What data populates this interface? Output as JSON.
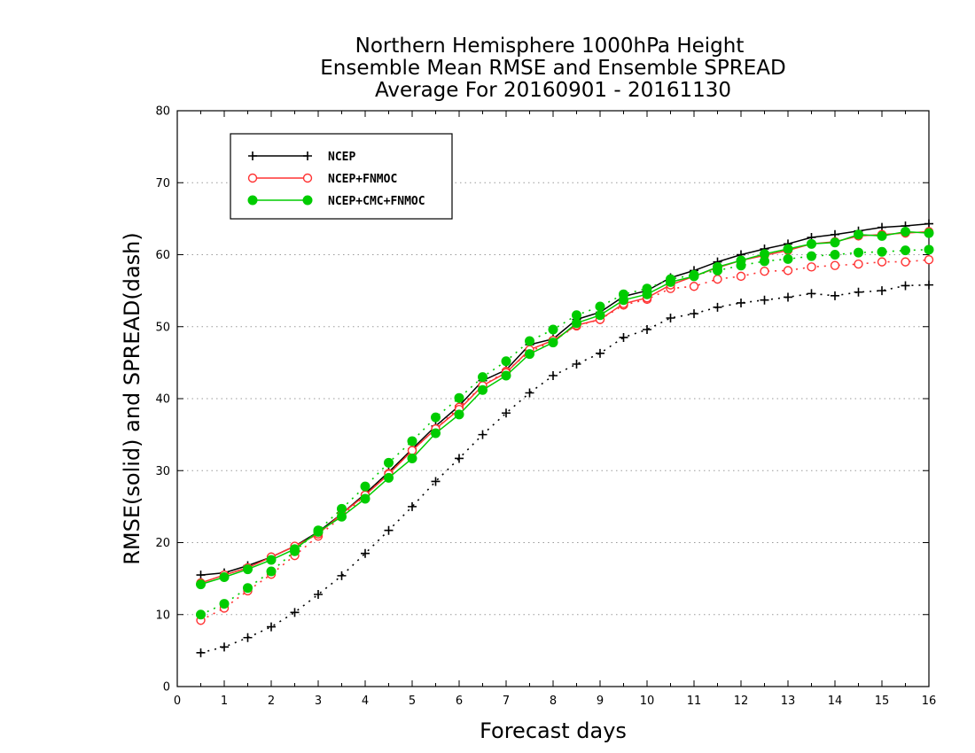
{
  "chart_data": {
    "type": "line",
    "title_lines": [
      "Northern Hemisphere 1000hPa Height",
      "Ensemble Mean RMSE and Ensemble SPREAD",
      "Average For 20160901 - 20161130"
    ],
    "xlabel": "Forecast days",
    "ylabel": "RMSE(solid) and SPREAD(dash)",
    "xlim": [
      0,
      16
    ],
    "ylim": [
      0,
      80
    ],
    "xticks": [
      0,
      1,
      2,
      3,
      4,
      5,
      6,
      7,
      8,
      9,
      10,
      11,
      12,
      13,
      14,
      15,
      16
    ],
    "yticks": [
      0,
      10,
      20,
      30,
      40,
      50,
      60,
      70,
      80
    ],
    "grid": true,
    "legend_position": "top-left",
    "x": [
      0.5,
      1,
      1.5,
      2,
      2.5,
      3,
      3.5,
      4,
      4.5,
      5,
      5.5,
      6,
      6.5,
      7,
      7.5,
      8,
      8.5,
      9,
      9.5,
      10,
      10.5,
      11,
      11.5,
      12,
      12.5,
      13,
      13.5,
      14,
      14.5,
      15,
      15.5,
      16
    ],
    "series": [
      {
        "name": "NCEP",
        "color": "#000000",
        "marker": "plus",
        "rmse": [
          15.5,
          15.8,
          16.8,
          18.0,
          19.5,
          21.5,
          24.0,
          26.8,
          29.8,
          33.0,
          36.2,
          39.0,
          42.5,
          44.0,
          47.5,
          48.3,
          51.0,
          52.0,
          54.2,
          55.0,
          56.8,
          57.8,
          59.0,
          60.0,
          60.8,
          61.5,
          62.4,
          62.8,
          63.3,
          63.8,
          64.0,
          64.3
        ],
        "spread": [
          4.7,
          5.5,
          6.8,
          8.3,
          10.3,
          12.8,
          15.4,
          18.5,
          21.7,
          25.0,
          28.5,
          31.7,
          35.0,
          38.0,
          40.8,
          43.2,
          44.8,
          46.3,
          48.5,
          49.6,
          51.2,
          51.8,
          52.7,
          53.3,
          53.7,
          54.1,
          54.6,
          54.3,
          54.8,
          55.0,
          55.7,
          55.8
        ]
      },
      {
        "name": "NCEP+FNMOC",
        "color": "#ff3333",
        "marker": "open-circle",
        "rmse": [
          14.4,
          15.5,
          16.5,
          18.0,
          19.5,
          21.2,
          24.0,
          26.6,
          29.5,
          32.8,
          35.8,
          38.5,
          41.8,
          43.6,
          46.8,
          48.1,
          50.2,
          51.0,
          53.2,
          54.0,
          55.8,
          57.0,
          58.2,
          59.2,
          59.9,
          60.6,
          61.5,
          61.8,
          62.6,
          62.8,
          63.0,
          63.2
        ],
        "spread": [
          9.2,
          10.9,
          13.3,
          15.6,
          18.2,
          20.9,
          23.6,
          26.6,
          29.6,
          32.8,
          35.8,
          38.8,
          41.8,
          43.8,
          46.5,
          48.0,
          50.1,
          51.0,
          53.0,
          53.8,
          55.3,
          55.6,
          56.6,
          57.0,
          57.7,
          57.8,
          58.3,
          58.5,
          58.7,
          59.0,
          59.0,
          59.3
        ]
      },
      {
        "name": "NCEP+CMC+FNMOC",
        "color": "#00cc00",
        "marker": "filled-circle",
        "rmse": [
          14.2,
          15.2,
          16.3,
          17.6,
          19.1,
          21.5,
          23.6,
          26.1,
          29.0,
          31.7,
          35.2,
          37.8,
          41.2,
          43.2,
          46.2,
          47.8,
          50.5,
          51.6,
          53.7,
          54.5,
          56.2,
          57.0,
          58.3,
          59.2,
          60.1,
          60.8,
          61.5,
          61.7,
          62.8,
          62.6,
          63.2,
          63.0
        ],
        "spread": [
          10.0,
          11.5,
          13.7,
          16.0,
          18.8,
          21.7,
          24.7,
          27.8,
          31.1,
          34.1,
          37.4,
          40.1,
          43.0,
          45.2,
          48.0,
          49.6,
          51.6,
          52.8,
          54.5,
          55.3,
          56.6,
          57.2,
          57.8,
          58.5,
          59.1,
          59.4,
          59.8,
          60.0,
          60.3,
          60.4,
          60.6,
          60.7
        ]
      }
    ]
  }
}
